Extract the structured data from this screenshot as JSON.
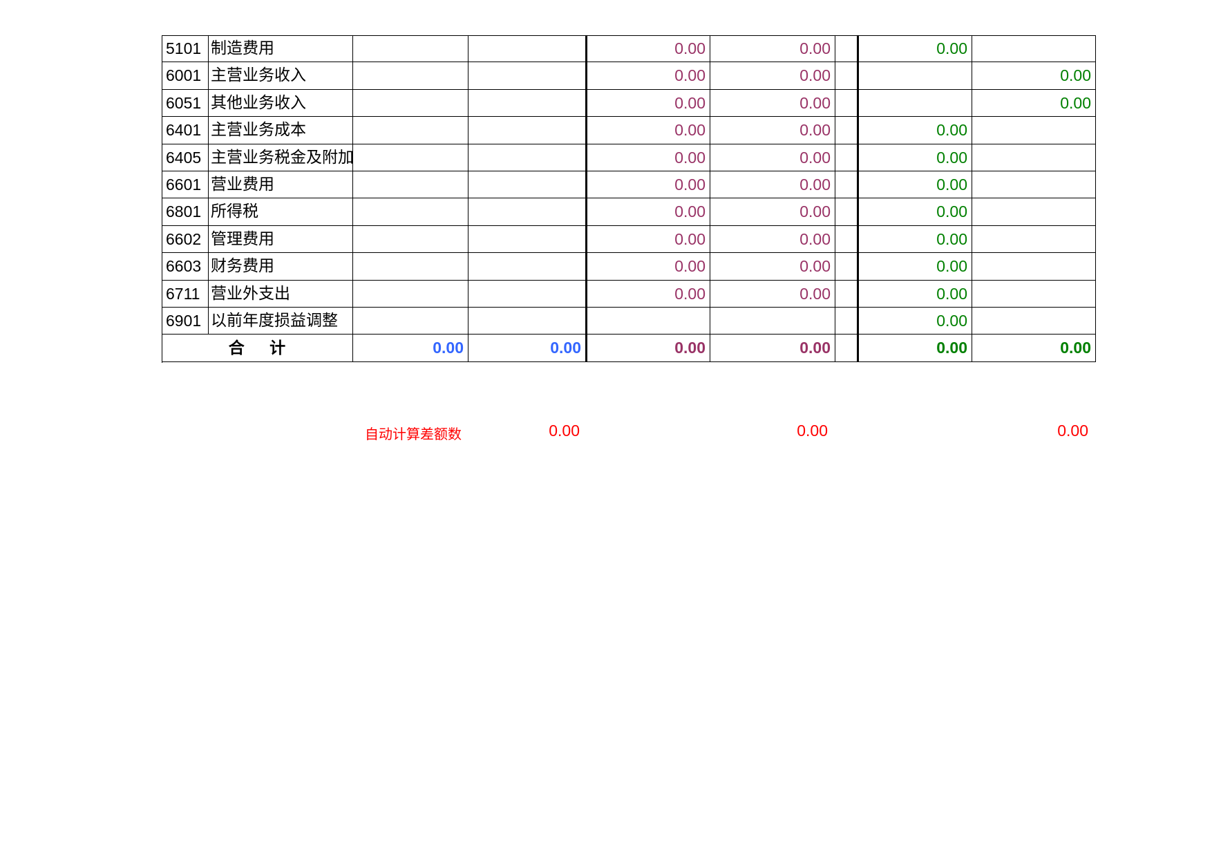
{
  "table": {
    "rows": [
      {
        "code": "5101",
        "name": "制造费用",
        "cells": [
          null,
          null,
          "0.00",
          "0.00",
          null,
          "0.00",
          null
        ]
      },
      {
        "code": "6001",
        "name": "主营业务收入",
        "cells": [
          null,
          null,
          "0.00",
          "0.00",
          null,
          null,
          "0.00"
        ]
      },
      {
        "code": "6051",
        "name": "其他业务收入",
        "cells": [
          null,
          null,
          "0.00",
          "0.00",
          null,
          null,
          "0.00"
        ]
      },
      {
        "code": "6401",
        "name": "主营业务成本",
        "cells": [
          null,
          null,
          "0.00",
          "0.00",
          null,
          "0.00",
          null
        ]
      },
      {
        "code": "6405",
        "name": "主营业务税金及附加",
        "cells": [
          null,
          null,
          "0.00",
          "0.00",
          null,
          "0.00",
          null
        ]
      },
      {
        "code": "6601",
        "name": "营业费用",
        "cells": [
          null,
          null,
          "0.00",
          "0.00",
          null,
          "0.00",
          null
        ]
      },
      {
        "code": "6801",
        "name": "所得税",
        "cells": [
          null,
          null,
          "0.00",
          "0.00",
          null,
          "0.00",
          null
        ]
      },
      {
        "code": "6602",
        "name": "管理费用",
        "cells": [
          null,
          null,
          "0.00",
          "0.00",
          null,
          "0.00",
          null
        ]
      },
      {
        "code": "6603",
        "name": "财务费用",
        "cells": [
          null,
          null,
          "0.00",
          "0.00",
          null,
          "0.00",
          null
        ]
      },
      {
        "code": "6711",
        "name": "营业外支出",
        "cells": [
          null,
          null,
          "0.00",
          "0.00",
          null,
          "0.00",
          null
        ]
      },
      {
        "code": "6901",
        "name": "以前年度损益调整",
        "cells": [
          null,
          null,
          null,
          null,
          null,
          "0.00",
          null
        ]
      }
    ],
    "total": {
      "label": "合 计",
      "cells": [
        "0.00",
        "0.00",
        "0.00",
        "0.00",
        null,
        "0.00",
        "0.00"
      ]
    }
  },
  "footer": {
    "label": "自动计算差额数",
    "values": [
      "0.00",
      "0.00",
      "0.00"
    ]
  }
}
